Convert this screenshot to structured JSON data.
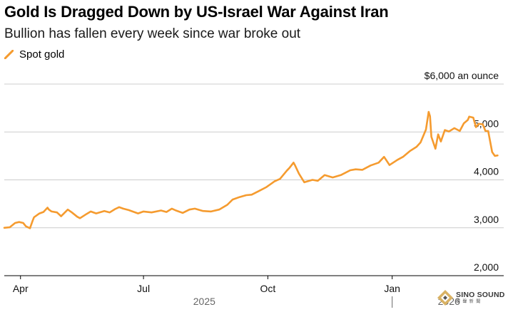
{
  "chart_data": {
    "type": "line",
    "title": "Gold Is Dragged Down by US-Israel War Against Iran",
    "subtitle": "Bullion has fallen every week since war broke out",
    "y_unit_label": "$6,000 an ounce",
    "ylim": [
      2000,
      6000
    ],
    "y_ticks": [
      {
        "value": 2000,
        "label": "2,000"
      },
      {
        "value": 3000,
        "label": "3,000"
      },
      {
        "value": 4000,
        "label": "4,000"
      },
      {
        "value": 5000,
        "label": "5,000"
      },
      {
        "value": 6000,
        "label": "$6,000 an ounce"
      }
    ],
    "xlim": [
      "2025-03-20",
      "2026-03-24"
    ],
    "x_ticks": [
      {
        "date": "2025-04-01",
        "label": "Apr"
      },
      {
        "date": "2025-07-01",
        "label": "Jul"
      },
      {
        "date": "2025-10-01",
        "label": "Oct"
      },
      {
        "date": "2026-01-01",
        "label": "Jan"
      }
    ],
    "year_labels": [
      {
        "date": "2025-08-15",
        "label": "2025"
      },
      {
        "date": "2026-02-12",
        "label": "2026"
      }
    ],
    "year_divider": "2026-01-01",
    "legend_position": "top-left",
    "grid": true,
    "series": [
      {
        "name": "Spot gold",
        "color": "#f59b2f",
        "x": [
          "2025-03-20",
          "2025-03-24",
          "2025-03-28",
          "2025-03-31",
          "2025-04-03",
          "2025-04-05",
          "2025-04-08",
          "2025-04-10",
          "2025-04-11",
          "2025-04-15",
          "2025-04-18",
          "2025-04-21",
          "2025-04-22",
          "2025-04-24",
          "2025-04-28",
          "2025-05-01",
          "2025-05-06",
          "2025-05-09",
          "2025-05-13",
          "2025-05-15",
          "2025-05-20",
          "2025-05-23",
          "2025-05-27",
          "2025-06-02",
          "2025-06-06",
          "2025-06-10",
          "2025-06-13",
          "2025-06-16",
          "2025-06-20",
          "2025-06-24",
          "2025-06-27",
          "2025-07-01",
          "2025-07-07",
          "2025-07-14",
          "2025-07-18",
          "2025-07-22",
          "2025-07-25",
          "2025-07-30",
          "2025-08-04",
          "2025-08-08",
          "2025-08-14",
          "2025-08-20",
          "2025-08-26",
          "2025-09-01",
          "2025-09-05",
          "2025-09-10",
          "2025-09-15",
          "2025-09-19",
          "2025-09-24",
          "2025-09-30",
          "2025-10-06",
          "2025-10-10",
          "2025-10-15",
          "2025-10-17",
          "2025-10-20",
          "2025-10-21",
          "2025-10-24",
          "2025-10-28",
          "2025-11-03",
          "2025-11-07",
          "2025-11-12",
          "2025-11-18",
          "2025-11-24",
          "2025-12-01",
          "2025-12-05",
          "2025-12-10",
          "2025-12-16",
          "2025-12-22",
          "2025-12-26",
          "2025-12-30",
          "2026-01-05",
          "2026-01-09",
          "2026-01-14",
          "2026-01-19",
          "2026-01-22",
          "2026-01-26",
          "2026-01-28",
          "2026-01-29",
          "2026-01-30",
          "2026-02-02",
          "2026-02-04",
          "2026-02-06",
          "2026-02-09",
          "2026-02-12",
          "2026-02-16",
          "2026-02-20",
          "2026-02-23",
          "2026-02-26",
          "2026-02-27",
          "2026-03-02",
          "2026-03-04",
          "2026-03-06",
          "2026-03-09",
          "2026-03-11",
          "2026-03-13",
          "2026-03-16",
          "2026-03-18",
          "2026-03-20"
        ],
        "y": [
          3000,
          3010,
          3100,
          3120,
          3100,
          3030,
          2990,
          3150,
          3220,
          3300,
          3330,
          3420,
          3380,
          3340,
          3320,
          3240,
          3380,
          3320,
          3230,
          3200,
          3290,
          3340,
          3300,
          3350,
          3320,
          3390,
          3430,
          3400,
          3370,
          3330,
          3300,
          3340,
          3320,
          3360,
          3330,
          3400,
          3360,
          3310,
          3380,
          3400,
          3350,
          3340,
          3380,
          3480,
          3590,
          3640,
          3680,
          3690,
          3760,
          3850,
          3970,
          4020,
          4190,
          4250,
          4360,
          4310,
          4130,
          3950,
          4000,
          3980,
          4100,
          4050,
          4100,
          4200,
          4220,
          4210,
          4300,
          4360,
          4480,
          4310,
          4420,
          4480,
          4600,
          4690,
          4780,
          5050,
          5420,
          5330,
          4900,
          4650,
          4950,
          4800,
          5040,
          5010,
          5080,
          5020,
          5180,
          5250,
          5320,
          5300,
          5100,
          5170,
          5160,
          5020,
          5020,
          4580,
          4500,
          4510
        ]
      }
    ]
  }
}
